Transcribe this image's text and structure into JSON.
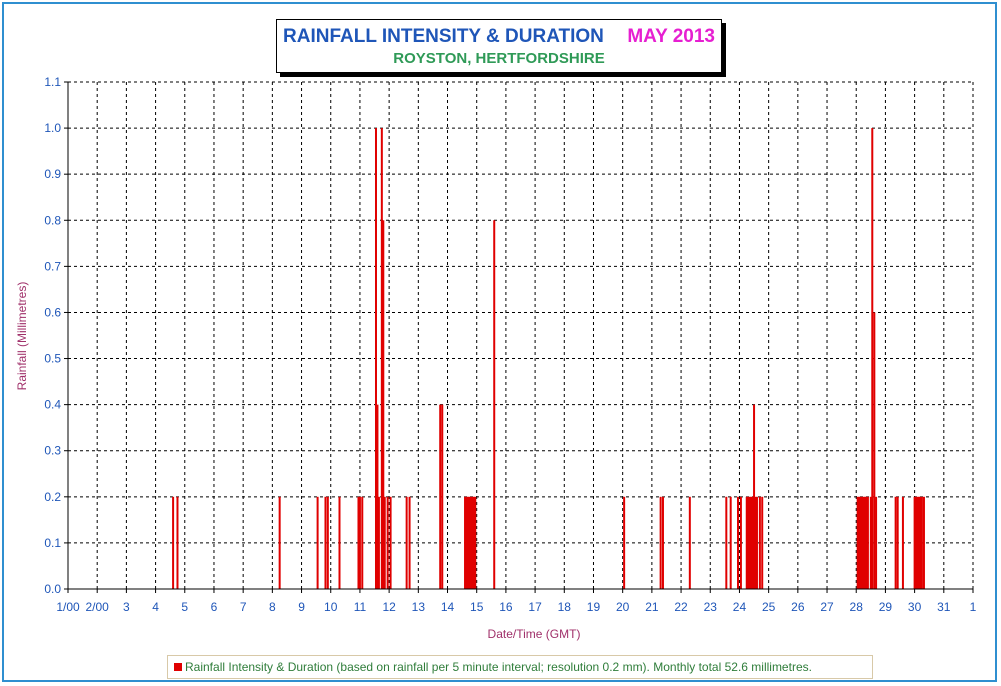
{
  "title": {
    "main": "RAINFALL INTENSITY & DURATION",
    "month": "MAY 2013",
    "subtitle": "ROYSTON, HERTFORDSHIRE"
  },
  "legend": {
    "text": "Rainfall Intensity & Duration (based on rainfall per 5 minute interval; resolution 0.2 mm). Monthly total 52.6 millimetres.",
    "color": "#e00000"
  },
  "chart_data": {
    "type": "bar",
    "xlabel": "Date/Time (GMT)",
    "ylabel": "Rainfall (Millimetres)",
    "xlim": [
      1,
      32
    ],
    "ylim": [
      0,
      1.1
    ],
    "x_tick_labels": [
      "1/00",
      "2/00",
      "3",
      "4",
      "5",
      "6",
      "7",
      "8",
      "9",
      "10",
      "11",
      "12",
      "13",
      "14",
      "15",
      "16",
      "17",
      "18",
      "19",
      "20",
      "21",
      "22",
      "23",
      "24",
      "25",
      "26",
      "27",
      "28",
      "29",
      "30",
      "31",
      "1"
    ],
    "y_tick_labels": [
      "0.0",
      "0.1",
      "0.2",
      "0.3",
      "0.4",
      "0.5",
      "0.6",
      "0.7",
      "0.8",
      "0.9",
      "1.0",
      "1.1"
    ],
    "grid": true,
    "colors": {
      "bars": "#e00000",
      "ticks": "#1f56b8",
      "axis_title": "#a0306a"
    },
    "series": [
      {
        "name": "Rainfall Intensity & Duration",
        "points": [
          [
            4.6,
            0.2
          ],
          [
            4.75,
            0.2
          ],
          [
            8.25,
            0.2
          ],
          [
            9.55,
            0.2
          ],
          [
            9.82,
            0.2
          ],
          [
            9.9,
            0.2
          ],
          [
            10.3,
            0.2
          ],
          [
            10.95,
            0.2
          ],
          [
            11.0,
            0.2
          ],
          [
            11.08,
            0.2
          ],
          [
            11.55,
            1.0
          ],
          [
            11.6,
            0.4
          ],
          [
            11.65,
            0.2
          ],
          [
            11.75,
            1.0
          ],
          [
            11.8,
            0.8
          ],
          [
            11.85,
            0.2
          ],
          [
            11.95,
            0.2
          ],
          [
            12.05,
            0.2
          ],
          [
            12.6,
            0.2
          ],
          [
            12.7,
            0.2
          ],
          [
            13.75,
            0.4
          ],
          [
            13.82,
            0.4
          ],
          [
            14.6,
            0.2
          ],
          [
            14.65,
            0.2
          ],
          [
            14.7,
            0.2
          ],
          [
            14.75,
            0.2
          ],
          [
            14.8,
            0.2
          ],
          [
            14.85,
            0.2
          ],
          [
            14.9,
            0.2
          ],
          [
            14.95,
            0.2
          ],
          [
            15.6,
            0.8
          ],
          [
            20.05,
            0.2
          ],
          [
            21.3,
            0.2
          ],
          [
            21.38,
            0.2
          ],
          [
            22.3,
            0.2
          ],
          [
            23.55,
            0.2
          ],
          [
            23.7,
            0.2
          ],
          [
            23.95,
            0.2
          ],
          [
            24.05,
            0.2
          ],
          [
            24.25,
            0.2
          ],
          [
            24.3,
            0.2
          ],
          [
            24.35,
            0.2
          ],
          [
            24.4,
            0.2
          ],
          [
            24.45,
            0.2
          ],
          [
            24.5,
            0.4
          ],
          [
            24.55,
            0.2
          ],
          [
            24.6,
            0.2
          ],
          [
            24.7,
            0.2
          ],
          [
            24.78,
            0.2
          ],
          [
            28.05,
            0.2
          ],
          [
            28.1,
            0.2
          ],
          [
            28.15,
            0.2
          ],
          [
            28.2,
            0.2
          ],
          [
            28.25,
            0.2
          ],
          [
            28.3,
            0.2
          ],
          [
            28.35,
            0.2
          ],
          [
            28.4,
            0.2
          ],
          [
            28.5,
            0.2
          ],
          [
            28.55,
            1.0
          ],
          [
            28.62,
            0.6
          ],
          [
            28.68,
            0.2
          ],
          [
            29.35,
            0.2
          ],
          [
            29.42,
            0.2
          ],
          [
            29.6,
            0.2
          ],
          [
            30.0,
            0.2
          ],
          [
            30.05,
            0.2
          ],
          [
            30.1,
            0.2
          ],
          [
            30.15,
            0.2
          ],
          [
            30.2,
            0.2
          ],
          [
            30.25,
            0.2
          ],
          [
            30.32,
            0.2
          ]
        ]
      }
    ]
  }
}
